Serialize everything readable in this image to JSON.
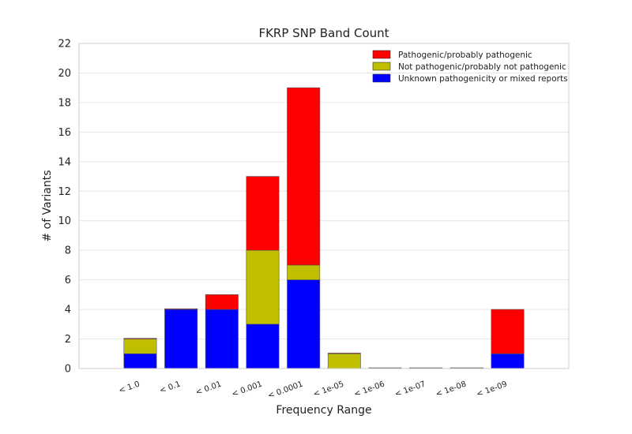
{
  "chart_data": {
    "type": "bar",
    "stacked": true,
    "title": "FKRP SNP Band Count",
    "xlabel": "Frequency Range",
    "ylabel": "# of Variants",
    "categories": [
      "< 1.0",
      "< 0.1",
      "< 0.01",
      "< 0.001",
      "< 0.0001",
      "< 1e-05",
      "< 1e-06",
      "< 1e-07",
      "< 1e-08",
      "< 1e-09"
    ],
    "ylim": [
      0,
      22
    ],
    "yticks": [
      0,
      2,
      4,
      6,
      8,
      10,
      12,
      14,
      16,
      18,
      20,
      22
    ],
    "grid": true,
    "legend_position": "top-right",
    "series": [
      {
        "name": "Unknown pathogenicity or mixed reports",
        "color": "#0000ff",
        "values": [
          1,
          4,
          4,
          3,
          6,
          0,
          0,
          0,
          0,
          1
        ]
      },
      {
        "name": "Not pathogenic/probably not pathogenic",
        "color": "#bfbf00",
        "values": [
          1,
          0,
          0,
          5,
          1,
          1,
          0,
          0,
          0,
          0
        ]
      },
      {
        "name": "Pathogenic/probably pathogenic",
        "color": "#ff0000",
        "values": [
          0,
          0,
          1,
          5,
          12,
          0,
          0,
          0,
          0,
          3
        ]
      }
    ],
    "legend_order": [
      2,
      1,
      0
    ]
  }
}
